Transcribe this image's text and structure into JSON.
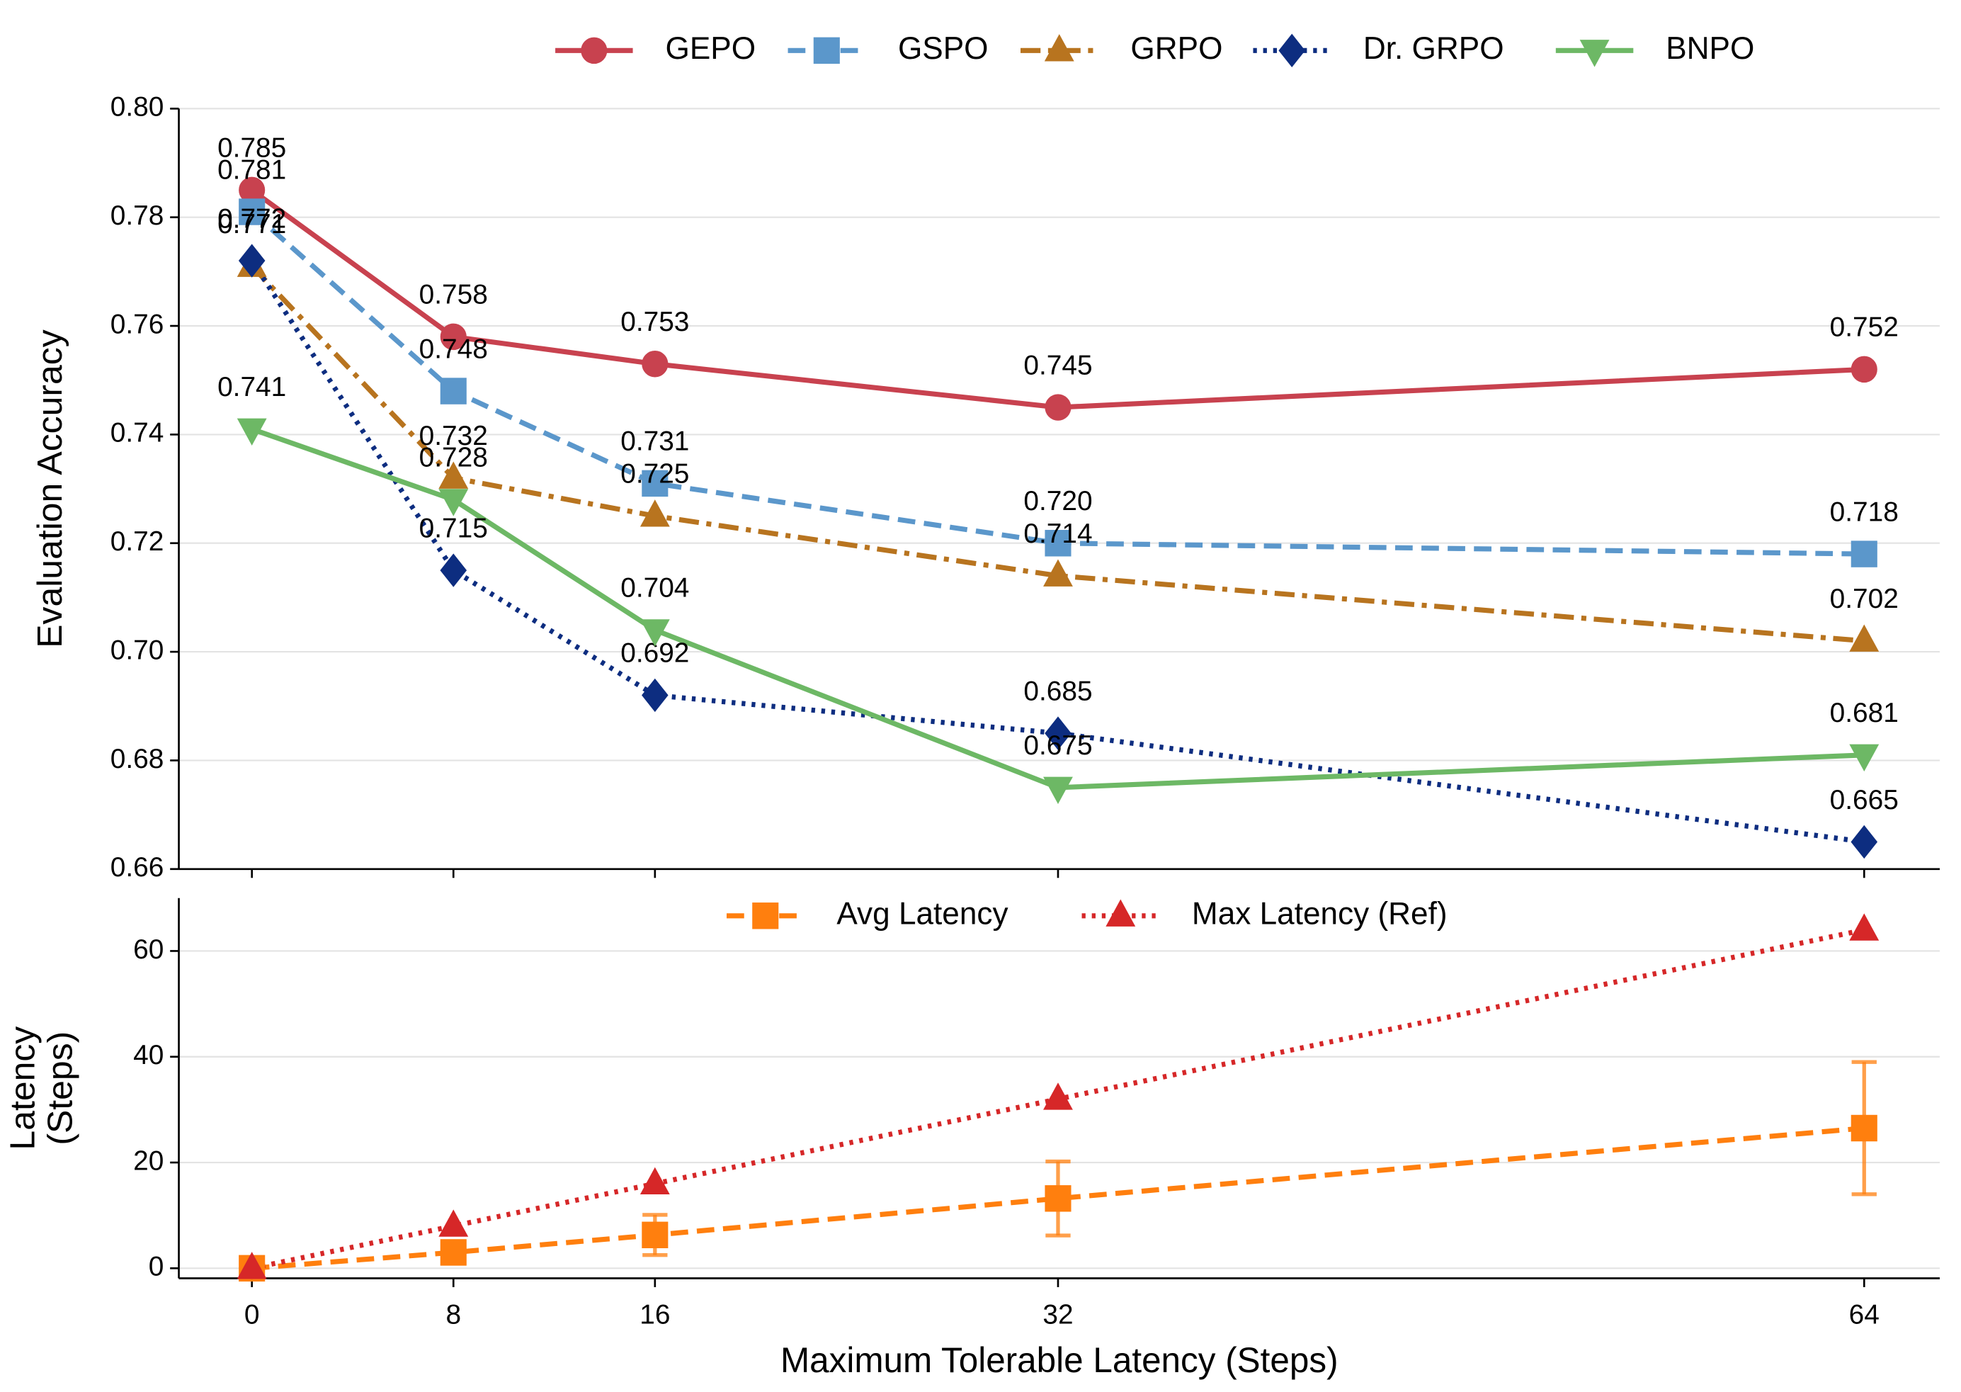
{
  "chart_data": [
    {
      "type": "line",
      "y_label": "Evaluation Accuracy",
      "x": [
        0,
        8,
        16,
        32,
        64
      ],
      "xlim": [
        -2.9,
        67
      ],
      "xticks": [
        0,
        8,
        16,
        32,
        64
      ],
      "ylim": [
        0.66,
        0.8
      ],
      "yticks": [
        0.66,
        0.68,
        {
          "value": 0.7,
          "label": "0.70"
        },
        0.72,
        0.74,
        0.76,
        0.78,
        {
          "value": 0.8,
          "label": "0.80"
        }
      ],
      "grid": true,
      "legend": "top",
      "series": [
        {
          "name": "GEPO",
          "color": "#c8424f",
          "line_style": "solid",
          "marker": "circle",
          "values": [
            0.785,
            0.758,
            0.753,
            0.745,
            0.752
          ],
          "value_labels": [
            "0.785",
            "0.758",
            "0.753",
            "0.745",
            "0.752"
          ]
        },
        {
          "name": "GSPO",
          "color": "#5b97cb",
          "line_style": "dashed",
          "marker": "square",
          "values": [
            0.781,
            0.748,
            0.731,
            0.72,
            0.718
          ],
          "value_labels": [
            "0.781",
            "0.748",
            "0.731",
            "0.720",
            "0.718"
          ]
        },
        {
          "name": "GRPO",
          "color": "#b8741f",
          "line_style": "dashdot",
          "marker": "triangle-up",
          "values": [
            0.771,
            0.732,
            0.725,
            0.714,
            0.702
          ],
          "value_labels": [
            "0.771",
            "0.732",
            "0.725",
            "0.714",
            "0.702"
          ]
        },
        {
          "name": "Dr. GRPO",
          "color": "#0d2d80",
          "line_style": "dotted",
          "marker": "diamond",
          "values": [
            0.772,
            0.715,
            0.692,
            0.685,
            0.665
          ],
          "value_labels": [
            "0.772",
            "0.715",
            "0.692",
            "0.685",
            "0.665"
          ]
        },
        {
          "name": "BNPO",
          "color": "#6db865",
          "line_style": "solid",
          "marker": "triangle-down",
          "values": [
            0.741,
            0.728,
            0.704,
            0.675,
            0.681
          ],
          "value_labels": [
            "0.741",
            "0.728",
            "0.704",
            "0.675",
            "0.681"
          ]
        }
      ]
    },
    {
      "type": "line",
      "x_label": "Maximum Tolerable Latency (Steps)",
      "y_label": [
        "Latency",
        "(Steps)"
      ],
      "x": [
        0,
        8,
        16,
        32,
        64
      ],
      "xlim": [
        -2.9,
        67
      ],
      "xticks": [
        0,
        8,
        16,
        32,
        64
      ],
      "ylim": [
        -1.9,
        70
      ],
      "yticks": [
        0,
        20,
        40,
        60
      ],
      "grid": true,
      "legend": "upper center",
      "series": [
        {
          "name": "Avg Latency",
          "color": "#ff7f0e",
          "line_style": "dashed",
          "marker": "square",
          "values": [
            0,
            3.0,
            6.3,
            13.2,
            26.5
          ],
          "errors": [
            0,
            0.8,
            3.8,
            7,
            12.5
          ]
        },
        {
          "name": "Max Latency (Ref)",
          "color": "#d62728",
          "line_style": "dotted",
          "marker": "triangle-up",
          "values": [
            0,
            8,
            16,
            32,
            64
          ]
        }
      ]
    }
  ]
}
